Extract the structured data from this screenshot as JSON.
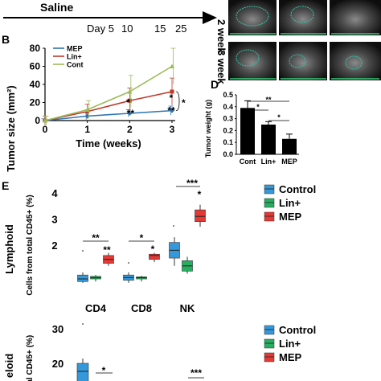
{
  "timeline": {
    "treatment": "Saline",
    "days": [
      "Day 5",
      "10",
      "15",
      "25"
    ]
  },
  "ultrasound": {
    "row_labels": [
      "2 week",
      "3 week"
    ]
  },
  "panel_labels": {
    "b": "B",
    "d": "D",
    "e": "E"
  },
  "colors": {
    "mep": "#2e75b6",
    "lin": "#c0392b",
    "cont": "#9bbb59",
    "box_control": "#3498db",
    "box_lin": "#27ae60",
    "box_mep": "#e53935"
  },
  "chart_data": [
    {
      "type": "line",
      "panel": "B",
      "xlabel": "Time (weeks)",
      "ylabel": "Tumor size (mm²)",
      "x": [
        0,
        1,
        2,
        3
      ],
      "xlim": [
        0,
        3
      ],
      "ylim": [
        0,
        80
      ],
      "yticks": [
        0,
        20,
        40,
        60,
        80
      ],
      "series": [
        {
          "name": "MEP",
          "values": [
            0,
            5,
            8,
            11
          ],
          "err": [
            2,
            4,
            4,
            5
          ]
        },
        {
          "name": "Lin+",
          "values": [
            0,
            10,
            22,
            32
          ],
          "err": [
            5,
            8,
            14,
            15
          ]
        },
        {
          "name": "Cont",
          "values": [
            0,
            12,
            32,
            60
          ],
          "err": [
            5,
            10,
            18,
            20
          ]
        }
      ],
      "annotations": [
        "*",
        "*",
        "**",
        "**",
        "*"
      ]
    },
    {
      "type": "bar",
      "panel": "D",
      "categories": [
        "Cont",
        "Lin+",
        "MEP"
      ],
      "values": [
        0.39,
        0.25,
        0.13
      ],
      "err": [
        0.06,
        0.025,
        0.04
      ],
      "ylabel": "Tumor weight (g)",
      "ylim": [
        0,
        0.5
      ],
      "yticks": [
        "0.0",
        "0.1",
        "0.2",
        "0.3",
        "0.4",
        "0.5"
      ],
      "annotations": [
        "**",
        "*",
        "*"
      ]
    },
    {
      "type": "box",
      "panel": "E",
      "title": "Lymphoid",
      "ylabel": "Cells from total CD45+ (%)",
      "categories": [
        "CD4",
        "CD8",
        "NK"
      ],
      "yticks": [
        2,
        3,
        4
      ],
      "series": [
        {
          "name": "Control",
          "boxes": [
            {
              "q1": 0.6,
              "median": 0.7,
              "q3": 0.85,
              "min": 0.55,
              "max": 0.95
            },
            {
              "q1": 0.65,
              "median": 0.75,
              "q3": 0.85,
              "min": 0.55,
              "max": 0.95
            },
            {
              "q1": 1.5,
              "median": 1.8,
              "q3": 2.1,
              "min": 1.2,
              "max": 2.3
            }
          ]
        },
        {
          "name": "Lin+",
          "boxes": [
            {
              "q1": 0.7,
              "median": 0.75,
              "q3": 0.8,
              "min": 0.6,
              "max": 0.85
            },
            {
              "q1": 0.7,
              "median": 0.75,
              "q3": 0.78,
              "min": 0.6,
              "max": 0.82
            },
            {
              "q1": 1.0,
              "median": 1.2,
              "q3": 1.4,
              "min": 0.9,
              "max": 1.55
            }
          ]
        },
        {
          "name": "MEP",
          "boxes": [
            {
              "q1": 1.3,
              "median": 1.45,
              "q3": 1.6,
              "min": 1.2,
              "max": 1.7
            },
            {
              "q1": 1.45,
              "median": 1.6,
              "q3": 1.65,
              "min": 1.35,
              "max": 1.7
            },
            {
              "q1": 2.9,
              "median": 3.1,
              "q3": 3.35,
              "min": 2.7,
              "max": 3.55
            }
          ]
        }
      ],
      "annotations": [
        "**",
        "**",
        "*",
        "*",
        "***",
        "*"
      ]
    },
    {
      "type": "box",
      "panel": "E",
      "title": "eloid",
      "ylabel": "cal CD45+ (%)",
      "yticks": [
        20,
        30
      ],
      "series": [
        {
          "name": "Control"
        },
        {
          "name": "Lin+"
        },
        {
          "name": "MEP"
        }
      ],
      "annotations": [
        "*",
        "***"
      ]
    }
  ]
}
